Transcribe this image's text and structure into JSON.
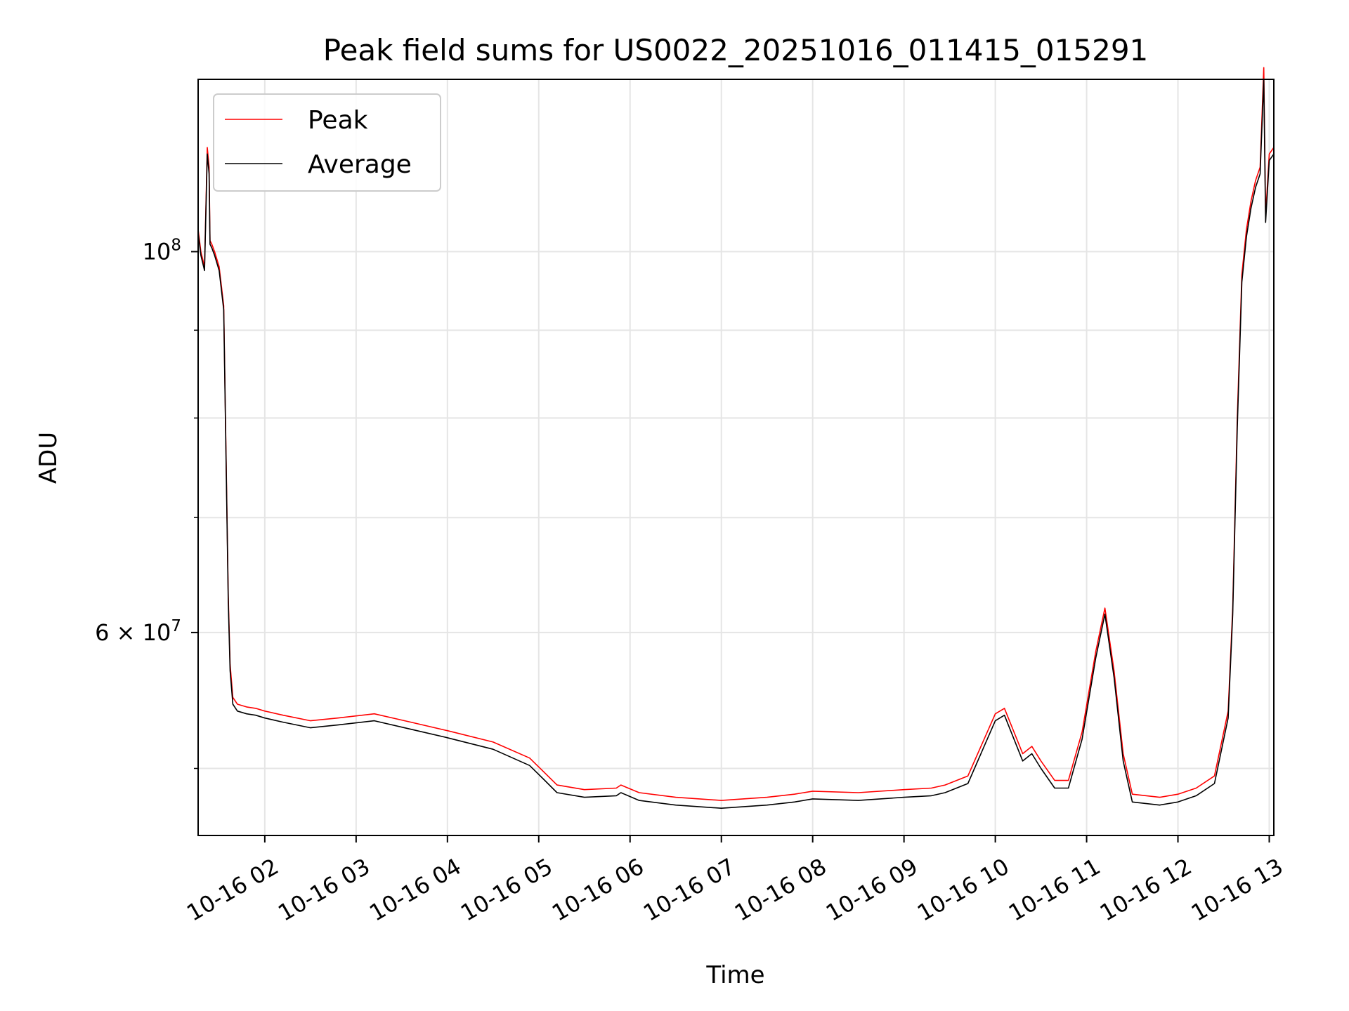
{
  "chart_data": {
    "type": "line",
    "title": "Peak field sums for US0022_20251016_011415_015291",
    "xlabel": "Time",
    "ylabel": "ADU",
    "yscale": "log",
    "grid": true,
    "legend": "top-left",
    "x_unit": "hours",
    "xlim": [
      1.27,
      13.05
    ],
    "ylim": [
      45700000,
      126000000
    ],
    "x_ticks": [
      {
        "value": 2,
        "label": "10-16 02"
      },
      {
        "value": 3,
        "label": "10-16 03"
      },
      {
        "value": 4,
        "label": "10-16 04"
      },
      {
        "value": 5,
        "label": "10-16 05"
      },
      {
        "value": 6,
        "label": "10-16 06"
      },
      {
        "value": 7,
        "label": "10-16 07"
      },
      {
        "value": 8,
        "label": "10-16 08"
      },
      {
        "value": 9,
        "label": "10-16 09"
      },
      {
        "value": 10,
        "label": "10-16 10"
      },
      {
        "value": 11,
        "label": "10-16 11"
      },
      {
        "value": 12,
        "label": "10-16 12"
      },
      {
        "value": 13,
        "label": "10-16 13"
      }
    ],
    "y_major_ticks": [
      {
        "value": 60000000,
        "mantissa": "6",
        "base": "10",
        "exp": "7"
      },
      {
        "value": 100000000,
        "mantissa": "",
        "base": "10",
        "exp": "8"
      }
    ],
    "y_minor_ticks": [
      50000000,
      70000000,
      80000000,
      90000000
    ],
    "series": [
      {
        "name": "Peak",
        "color": "#ff0000",
        "x": [
          1.27,
          1.3,
          1.34,
          1.37,
          1.39,
          1.4,
          1.42,
          1.45,
          1.5,
          1.55,
          1.6,
          1.62,
          1.65,
          1.7,
          1.8,
          1.9,
          2.0,
          2.2,
          2.5,
          2.8,
          3.2,
          3.6,
          4.0,
          4.5,
          4.9,
          5.05,
          5.2,
          5.5,
          5.85,
          5.9,
          6.1,
          6.5,
          7.0,
          7.5,
          7.8,
          8.0,
          8.5,
          9.0,
          9.3,
          9.45,
          9.7,
          10.0,
          10.1,
          10.3,
          10.4,
          10.5,
          10.65,
          10.8,
          10.95,
          11.1,
          11.2,
          11.3,
          11.4,
          11.5,
          11.8,
          12.0,
          12.2,
          12.4,
          12.55,
          12.6,
          12.65,
          12.7,
          12.75,
          12.8,
          12.85,
          12.9,
          12.94,
          12.96,
          13.0,
          13.05
        ],
        "y": [
          103000000,
          100000000,
          98000000,
          115000000,
          112000000,
          101500000,
          101000000,
          100000000,
          98000000,
          93000000,
          63000000,
          57500000,
          55000000,
          54500000,
          54300000,
          54200000,
          54000000,
          53700000,
          53300000,
          53500000,
          53800000,
          53200000,
          52600000,
          51800000,
          50700000,
          49800000,
          48900000,
          48600000,
          48700000,
          48900000,
          48400000,
          48100000,
          47900000,
          48100000,
          48300000,
          48500000,
          48400000,
          48600000,
          48700000,
          48900000,
          49500000,
          53800000,
          54200000,
          51000000,
          51500000,
          50500000,
          49200000,
          49200000,
          52500000,
          58500000,
          62000000,
          57000000,
          51000000,
          48300000,
          48100000,
          48300000,
          48700000,
          49500000,
          54000000,
          62000000,
          80000000,
          97000000,
          103000000,
          107000000,
          110000000,
          112000000,
          128000000,
          105000000,
          114000000,
          115000000
        ]
      },
      {
        "name": "Average",
        "color": "#000000",
        "x": [
          1.27,
          1.3,
          1.34,
          1.37,
          1.39,
          1.4,
          1.42,
          1.45,
          1.5,
          1.55,
          1.6,
          1.62,
          1.65,
          1.7,
          1.8,
          1.9,
          2.0,
          2.2,
          2.5,
          2.8,
          3.2,
          3.6,
          4.0,
          4.5,
          4.9,
          5.05,
          5.2,
          5.5,
          5.85,
          5.9,
          6.1,
          6.5,
          7.0,
          7.5,
          7.8,
          8.0,
          8.5,
          9.0,
          9.3,
          9.45,
          9.7,
          10.0,
          10.1,
          10.3,
          10.4,
          10.5,
          10.65,
          10.8,
          10.95,
          11.1,
          11.2,
          11.3,
          11.4,
          11.5,
          11.8,
          12.0,
          12.2,
          12.4,
          12.55,
          12.6,
          12.65,
          12.7,
          12.75,
          12.8,
          12.85,
          12.9,
          12.94,
          12.96,
          13.0,
          13.05
        ],
        "y": [
          102500000,
          99500000,
          97500000,
          114000000,
          111000000,
          101000000,
          100500000,
          99500000,
          97500000,
          92500000,
          62500000,
          57000000,
          54500000,
          54000000,
          53800000,
          53700000,
          53500000,
          53200000,
          52800000,
          53000000,
          53300000,
          52700000,
          52100000,
          51300000,
          50200000,
          49300000,
          48400000,
          48100000,
          48200000,
          48400000,
          47900000,
          47600000,
          47400000,
          47600000,
          47800000,
          48000000,
          47900000,
          48100000,
          48200000,
          48400000,
          49000000,
          53300000,
          53700000,
          50500000,
          51000000,
          50000000,
          48700000,
          48700000,
          52000000,
          58000000,
          61500000,
          56500000,
          50500000,
          47800000,
          47600000,
          47800000,
          48200000,
          49000000,
          53500000,
          61500000,
          79000000,
          96000000,
          102000000,
          106000000,
          109000000,
          111000000,
          126000000,
          104000000,
          113000000,
          114000000
        ]
      }
    ]
  }
}
